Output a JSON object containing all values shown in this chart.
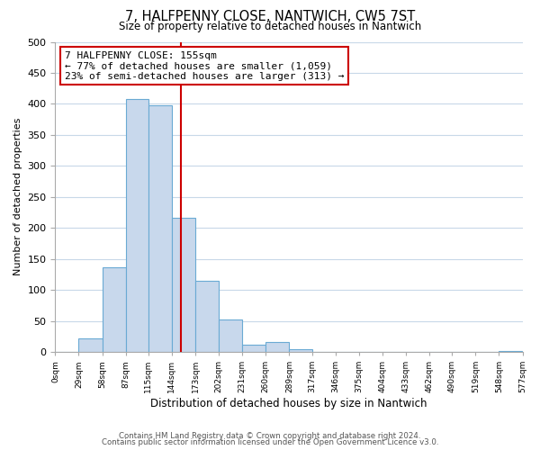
{
  "title": "7, HALFPENNY CLOSE, NANTWICH, CW5 7ST",
  "subtitle": "Size of property relative to detached houses in Nantwich",
  "xlabel": "Distribution of detached houses by size in Nantwich",
  "ylabel": "Number of detached properties",
  "bar_color": "#c8d8ec",
  "bar_edge_color": "#6aaad4",
  "bin_edges": [
    0,
    29,
    58,
    87,
    115,
    144,
    173,
    202,
    231,
    260,
    289,
    317,
    346,
    375,
    404,
    433,
    462,
    490,
    519,
    548,
    577
  ],
  "bin_labels": [
    "0sqm",
    "29sqm",
    "58sqm",
    "87sqm",
    "115sqm",
    "144sqm",
    "173sqm",
    "202sqm",
    "231sqm",
    "260sqm",
    "289sqm",
    "317sqm",
    "346sqm",
    "375sqm",
    "404sqm",
    "433sqm",
    "462sqm",
    "490sqm",
    "519sqm",
    "548sqm",
    "577sqm"
  ],
  "bar_heights": [
    0,
    22,
    137,
    408,
    398,
    216,
    115,
    52,
    11,
    16,
    5,
    0,
    0,
    0,
    0,
    0,
    0,
    0,
    0,
    2
  ],
  "vline_x": 155,
  "vline_color": "#cc0000",
  "ylim": [
    0,
    500
  ],
  "yticks": [
    0,
    50,
    100,
    150,
    200,
    250,
    300,
    350,
    400,
    450,
    500
  ],
  "annotation_line1": "7 HALFPENNY CLOSE: 155sqm",
  "annotation_line2": "← 77% of detached houses are smaller (1,059)",
  "annotation_line3": "23% of semi-detached houses are larger (313) →",
  "annotation_box_color": "#ffffff",
  "annotation_box_edge": "#cc0000",
  "footer_line1": "Contains HM Land Registry data © Crown copyright and database right 2024.",
  "footer_line2": "Contains public sector information licensed under the Open Government Licence v3.0.",
  "background_color": "#ffffff",
  "grid_color": "#c8d8e8"
}
